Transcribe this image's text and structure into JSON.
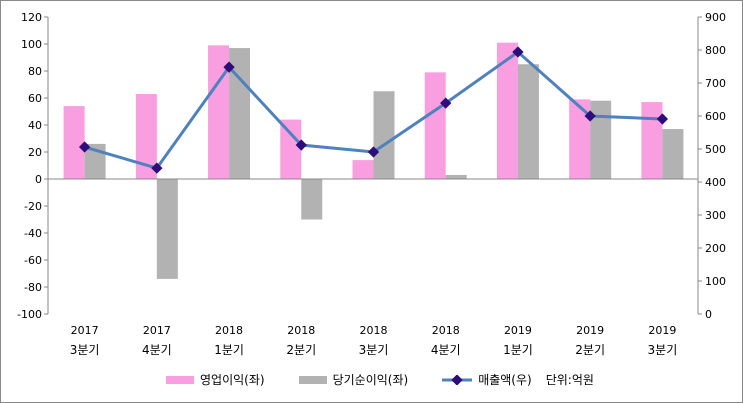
{
  "chart_data": {
    "type": "bar+line",
    "categories": [
      [
        "2017",
        "3분기"
      ],
      [
        "2017",
        "4분기"
      ],
      [
        "2018",
        "1분기"
      ],
      [
        "2018",
        "2분기"
      ],
      [
        "2018",
        "3분기"
      ],
      [
        "2018",
        "4분기"
      ],
      [
        "2019",
        "1분기"
      ],
      [
        "2019",
        "2분기"
      ],
      [
        "2019",
        "3분기"
      ]
    ],
    "series": [
      {
        "name": "영업이익(좌)",
        "type": "bar",
        "axis": "left",
        "color": "#f99ee0",
        "values": [
          54,
          63,
          99,
          44,
          14,
          79,
          101,
          59,
          57
        ]
      },
      {
        "name": "당기순이익(좌)",
        "type": "bar",
        "axis": "left",
        "color": "#b2b2b2",
        "values": [
          26,
          -74,
          97,
          -30,
          65,
          3,
          85,
          58,
          37
        ]
      },
      {
        "name": "매출액(우)",
        "type": "line",
        "axis": "right",
        "color": "#4f81bd",
        "marker_color": "#2e0d7a",
        "values": [
          506,
          442,
          748,
          512,
          491,
          639,
          794,
          600,
          591
        ]
      }
    ],
    "left_axis": {
      "min": -100,
      "max": 120,
      "step": 20
    },
    "right_axis": {
      "min": 0,
      "max": 900,
      "step": 100
    },
    "unit_label": "단위:억원",
    "legend_position": "bottom",
    "grid": false
  }
}
